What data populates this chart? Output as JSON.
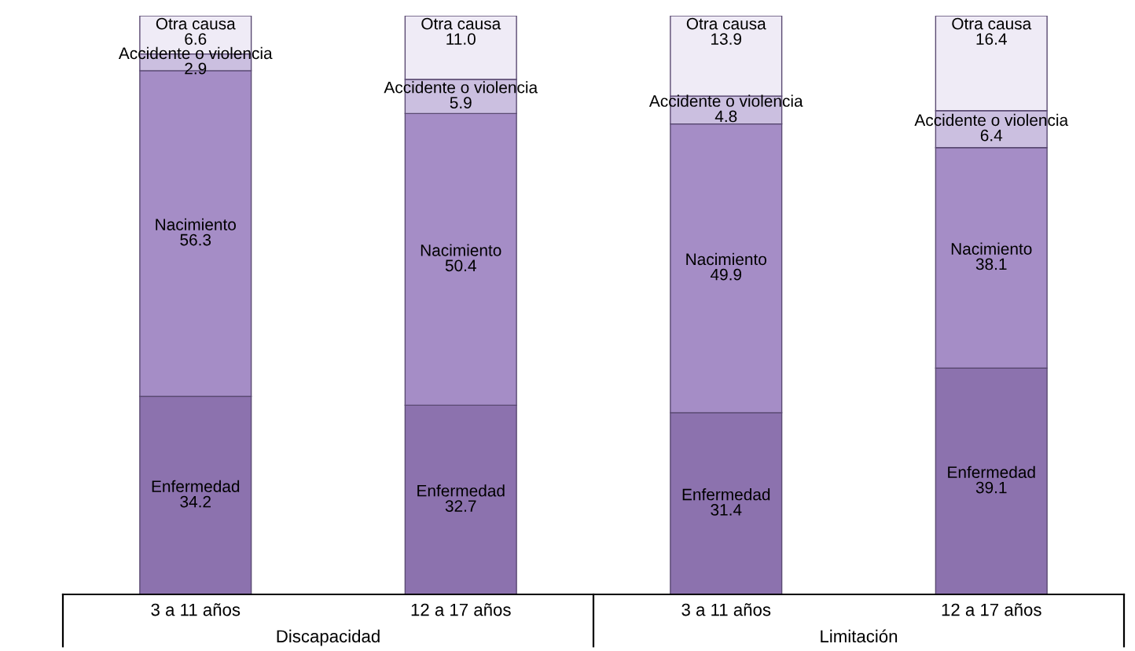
{
  "chart_data": {
    "type": "bar",
    "stacked": true,
    "data_labels": true,
    "legend": false,
    "grid": false,
    "categories": [
      "3 a 11 años",
      "12 a 17 años",
      "3 a 11 años",
      "12 a 17 años"
    ],
    "series": [
      {
        "name": "Enfermedad",
        "color": "#8c72ae",
        "values": [
          34.2,
          32.7,
          31.4,
          39.1
        ],
        "value_labels": [
          "34.2",
          "32.7",
          "31.4",
          "39.1"
        ]
      },
      {
        "name": "Nacimiento",
        "color": "#a58dc6",
        "values": [
          56.3,
          50.4,
          49.9,
          38.1
        ],
        "value_labels": [
          "56.3",
          "50.4",
          "49.9",
          "38.1"
        ]
      },
      {
        "name": "Accidente o violencia",
        "color": "#cbbfe0",
        "values": [
          2.9,
          5.9,
          4.8,
          6.4
        ],
        "value_labels": [
          "2.9",
          "5.9",
          "4.8",
          "6.4"
        ]
      },
      {
        "name": "Otra causa",
        "color": "#efebf6",
        "values": [
          6.6,
          11.0,
          13.9,
          16.4
        ],
        "value_labels": [
          "6.6",
          "11.0",
          "13.9",
          "16.4"
        ]
      }
    ],
    "annotations": [
      "Discapacidad",
      "Limitación"
    ]
  }
}
